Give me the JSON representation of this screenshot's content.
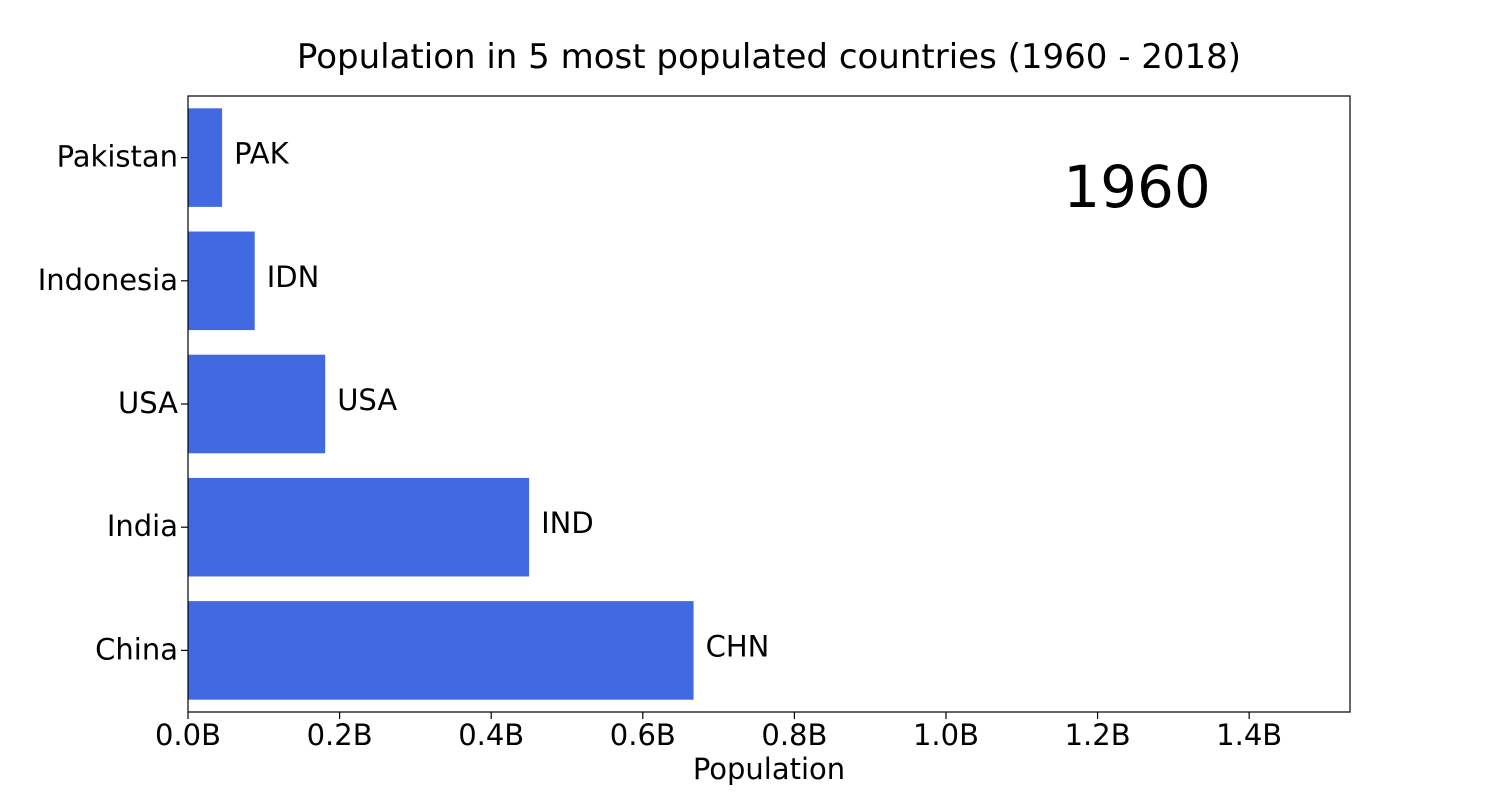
{
  "chart_data": {
    "type": "bar",
    "orientation": "horizontal",
    "title": "Population in 5 most populated countries (1960 - 2018)",
    "xlabel": "Population",
    "ylabel": "",
    "year": "1960",
    "xlim": [
      0,
      1.533
    ],
    "x_ticks": [
      {
        "value": 0.0,
        "label": "0.0B"
      },
      {
        "value": 0.2,
        "label": "0.2B"
      },
      {
        "value": 0.4,
        "label": "0.4B"
      },
      {
        "value": 0.6,
        "label": "0.6B"
      },
      {
        "value": 0.8,
        "label": "0.8B"
      },
      {
        "value": 1.0,
        "label": "1.0B"
      },
      {
        "value": 1.2,
        "label": "1.2B"
      },
      {
        "value": 1.4,
        "label": "1.4B"
      }
    ],
    "units": "billions",
    "categories": [
      "Pakistan",
      "Indonesia",
      "USA",
      "India",
      "China"
    ],
    "codes": [
      "PAK",
      "IDN",
      "USA",
      "IND",
      "CHN"
    ],
    "values": [
      0.045,
      0.088,
      0.181,
      0.45,
      0.667
    ],
    "bar_color": "#4169E1"
  }
}
